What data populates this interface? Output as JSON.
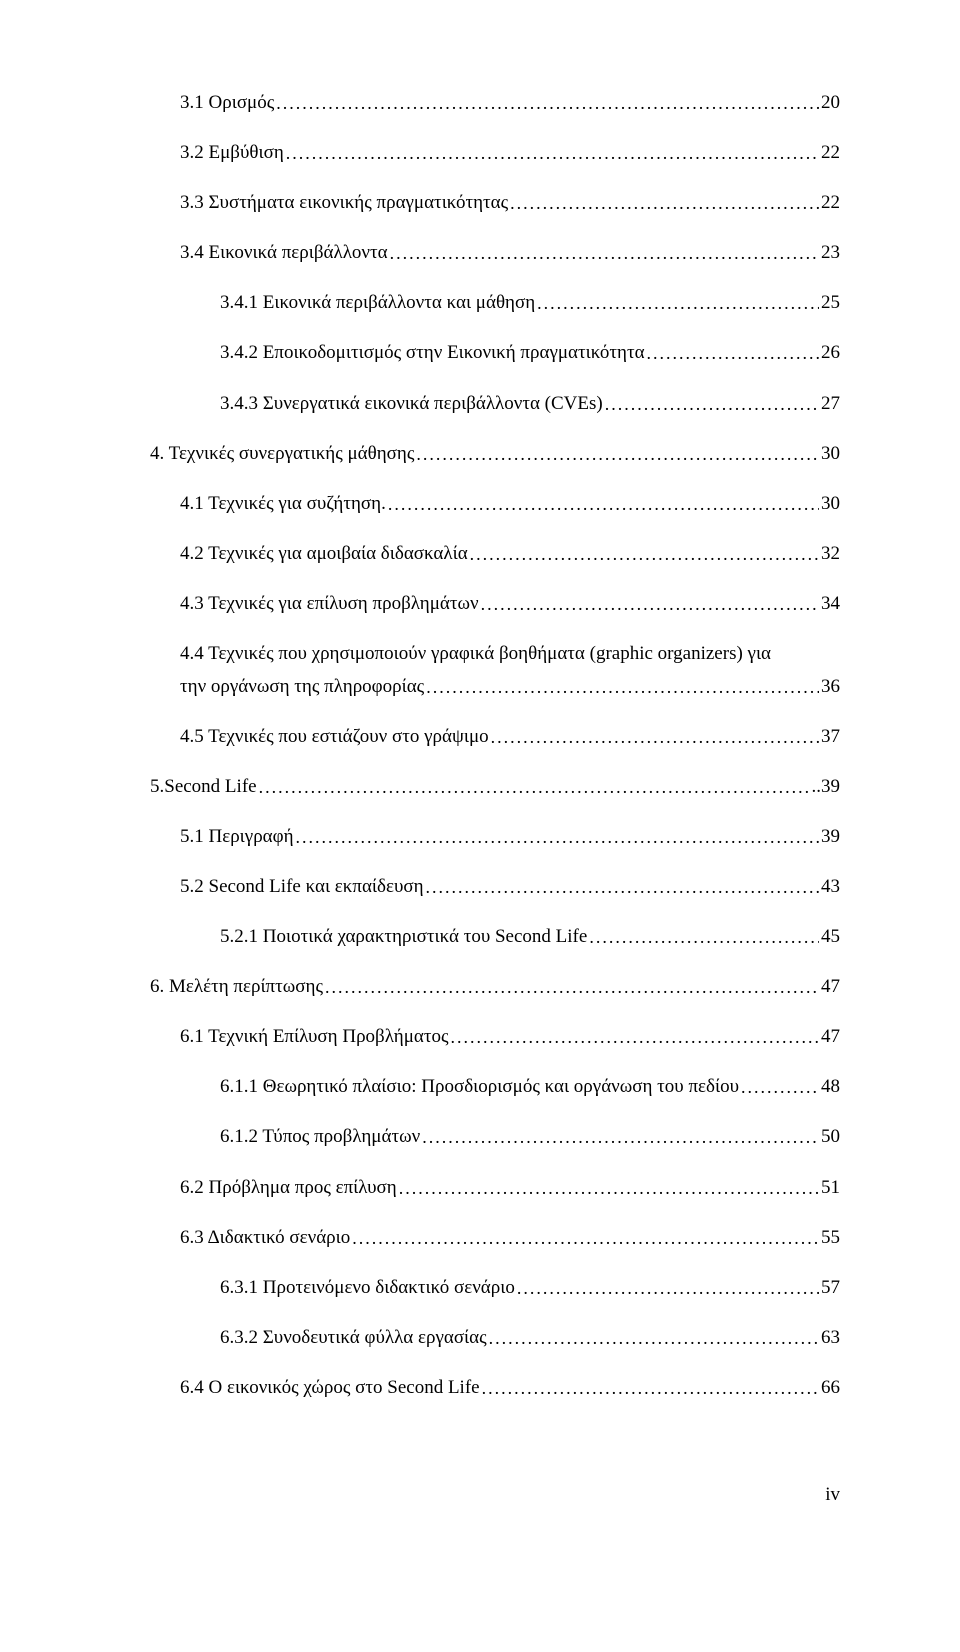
{
  "toc": {
    "entries": [
      {
        "indent": 1,
        "label": "3.1 Ορισμός",
        "page": "20"
      },
      {
        "indent": 1,
        "label": "3.2 Εμβύθιση",
        "page": "22"
      },
      {
        "indent": 1,
        "label": "3.3 Συστήματα εικονικής πραγματικότητας",
        "page": "22"
      },
      {
        "indent": 1,
        "label": "3.4 Εικονικά περιβάλλοντα",
        "page": "23"
      },
      {
        "indent": 2,
        "label": "3.4.1 Εικονικά περιβάλλοντα και μάθηση",
        "page": "25"
      },
      {
        "indent": 2,
        "label": "3.4.2 Εποικοδομιτισμός στην Εικονική πραγματικότητα",
        "page": "26"
      },
      {
        "indent": 2,
        "label": "3.4.3 Συνεργατικά εικονικά περιβάλλοντα (CVEs)",
        "page": "27"
      },
      {
        "indent": 0,
        "label": "4. Τεχνικές συνεργατικής μάθησης",
        "page": "30"
      },
      {
        "indent": 1,
        "label": "4.1 Τεχνικές για συζήτηση.",
        "page": "30"
      },
      {
        "indent": 1,
        "label": "4.2 Τεχνικές για αμοιβαία διδασκαλία",
        "page": "32"
      },
      {
        "indent": 1,
        "label": "4.3 Τεχνικές για επίλυση προβλημάτων",
        "page": " 34"
      },
      {
        "indent": 1,
        "multiline": true,
        "label_top": "4.4 Τεχνικές που χρησιμοποιούν γραφικά βοηθήματα (graphic organizers) για",
        "label_bottom": "την οργάνωση της πληροφορίας",
        "page": "36"
      },
      {
        "indent": 1,
        "label": "4.5 Τεχνικές που εστιάζουν στο γράψιμο",
        "page": "37"
      },
      {
        "indent": 0,
        "label": "5.Second Life",
        "page": "..39"
      },
      {
        "indent": 1,
        "label": "5.1 Περιγραφή",
        "page": "39"
      },
      {
        "indent": 1,
        "label": "5.2 Second Life και εκπαίδευση",
        "page": "43"
      },
      {
        "indent": 2,
        "label": "5.2.1 Ποιοτικά χαρακτηριστικά του Second Life",
        "page": "45"
      },
      {
        "indent": 0,
        "label": "6. Μελέτη περίπτωσης",
        "page": "47"
      },
      {
        "indent": 1,
        "label": "6.1 Τεχνική Επίλυση Προβλήματος",
        "page": "47"
      },
      {
        "indent": 2,
        "label": "6.1.1 Θεωρητικό πλαίσιο: Προσδιορισμός και οργάνωση του πεδίου",
        "page": "48"
      },
      {
        "indent": 2,
        "label": "6.1.2 Τύπος προβλημάτων",
        "page": "50"
      },
      {
        "indent": 1,
        "label": "6.2 Πρόβλημα προς επίλυση",
        "page": "51"
      },
      {
        "indent": 1,
        "label": "6.3 Διδακτικό σενάριο",
        "page": "55"
      },
      {
        "indent": 2,
        "label": "6.3.1 Προτεινόμενο διδακτικό σενάριο",
        "page": "57"
      },
      {
        "indent": 2,
        "label": "6.3.2 Συνοδευτικά φύλλα εργασίας",
        "page": "63"
      },
      {
        "indent": 1,
        "label": "6.4 Ο εικονικός χώρος στο Second Life",
        "page": "66"
      }
    ]
  },
  "footer": {
    "page_number": "iv"
  }
}
